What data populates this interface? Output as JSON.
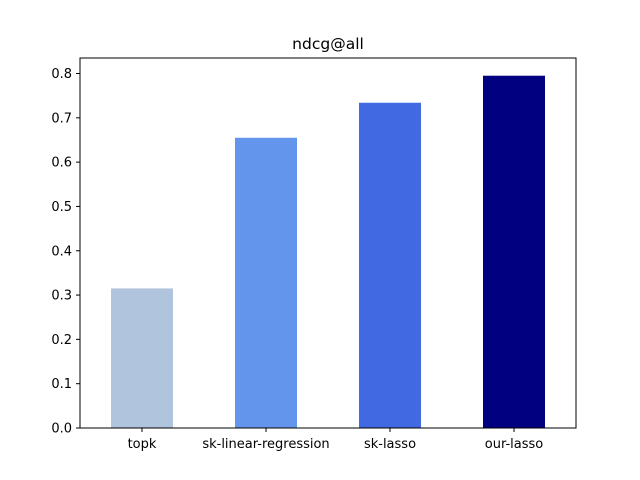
{
  "chart_data": {
    "type": "bar",
    "title": "ndcg@all",
    "xlabel": "",
    "ylabel": "",
    "categories": [
      "topk",
      "sk-linear-regression",
      "sk-lasso",
      "our-lasso"
    ],
    "values": [
      0.315,
      0.655,
      0.734,
      0.795
    ],
    "bar_colors": [
      "#b0c4de",
      "#6495ed",
      "#4169e1",
      "#000080"
    ],
    "ylim": [
      0,
      0.835
    ],
    "yticks": [
      0.0,
      0.1,
      0.2,
      0.3,
      0.4,
      0.5,
      0.6,
      0.7,
      0.8
    ],
    "ytick_labels": [
      "0.0",
      "0.1",
      "0.2",
      "0.3",
      "0.4",
      "0.5",
      "0.6",
      "0.7",
      "0.8"
    ],
    "grid": false,
    "legend": "none"
  }
}
